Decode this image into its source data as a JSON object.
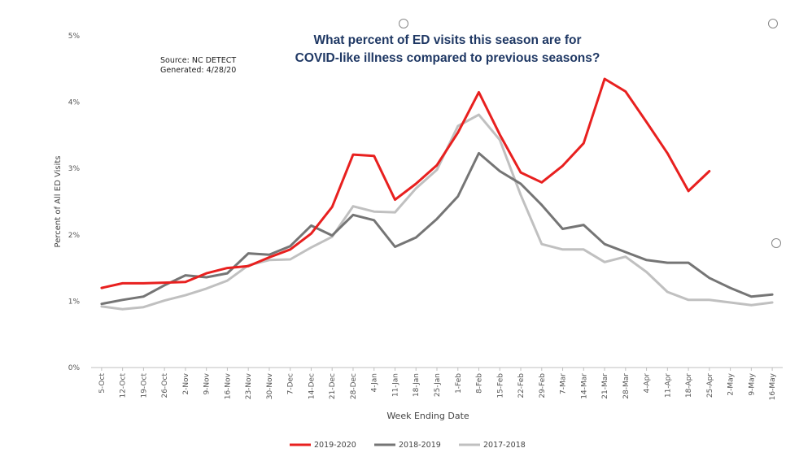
{
  "source": {
    "line1": "Source: NC DETECT",
    "line2": "Generated: 4/28/20"
  },
  "chart_data": {
    "type": "line",
    "title_line1": "What percent of ED visits this season are for",
    "title_line2": "COVID-like illness compared to previous seasons?",
    "xlabel": "Week Ending Date",
    "ylabel": "Percent of All ED Visits",
    "ylim": [
      0,
      5
    ],
    "yticks": [
      0,
      1,
      2,
      3,
      4,
      5
    ],
    "ytick_labels": [
      "0%",
      "1%",
      "2%",
      "3%",
      "4%",
      "5%"
    ],
    "grid": false,
    "legend_position": "bottom",
    "categories": [
      "5-Oct",
      "12-Oct",
      "19-Oct",
      "26-Oct",
      "2-Nov",
      "9-Nov",
      "16-Nov",
      "23-Nov",
      "30-Nov",
      "7-Dec",
      "14-Dec",
      "21-Dec",
      "28-Dec",
      "4-Jan",
      "11-Jan",
      "18-Jan",
      "25-Jan",
      "1-Feb",
      "8-Feb",
      "15-Feb",
      "22-Feb",
      "29-Feb",
      "7-Mar",
      "14-Mar",
      "21-Mar",
      "28-Mar",
      "4-Apr",
      "11-Apr",
      "18-Apr",
      "25-Apr",
      "2-May",
      "9-May",
      "16-May"
    ],
    "series": [
      {
        "name": "2019-2020",
        "color": "#e8201f",
        "values": [
          1.2,
          1.27,
          1.27,
          1.28,
          1.29,
          1.42,
          1.5,
          1.53,
          1.66,
          1.78,
          2.02,
          2.42,
          3.21,
          3.19,
          2.53,
          2.77,
          3.05,
          3.54,
          4.15,
          3.51,
          2.94,
          2.79,
          3.04,
          3.38,
          4.35,
          4.16,
          3.7,
          3.23,
          2.66,
          2.96,
          null,
          null,
          null
        ]
      },
      {
        "name": "2018-2019",
        "color": "#757575",
        "values": [
          0.96,
          1.02,
          1.07,
          1.24,
          1.39,
          1.36,
          1.42,
          1.72,
          1.7,
          1.83,
          2.14,
          1.99,
          2.3,
          2.22,
          1.82,
          1.96,
          2.24,
          2.58,
          3.23,
          2.96,
          2.77,
          2.45,
          2.09,
          2.15,
          1.86,
          1.74,
          1.62,
          1.58,
          1.58,
          1.35,
          1.2,
          1.07,
          1.1
        ]
      },
      {
        "name": "2017-2018",
        "color": "#c0c0c0",
        "values": [
          0.92,
          0.88,
          0.91,
          1.01,
          1.09,
          1.19,
          1.31,
          1.54,
          1.62,
          1.63,
          1.81,
          1.97,
          2.43,
          2.35,
          2.34,
          2.7,
          2.98,
          3.64,
          3.81,
          3.43,
          2.6,
          1.86,
          1.78,
          1.78,
          1.59,
          1.67,
          1.44,
          1.14,
          1.02,
          1.02,
          0.98,
          0.94,
          0.98
        ]
      }
    ]
  }
}
